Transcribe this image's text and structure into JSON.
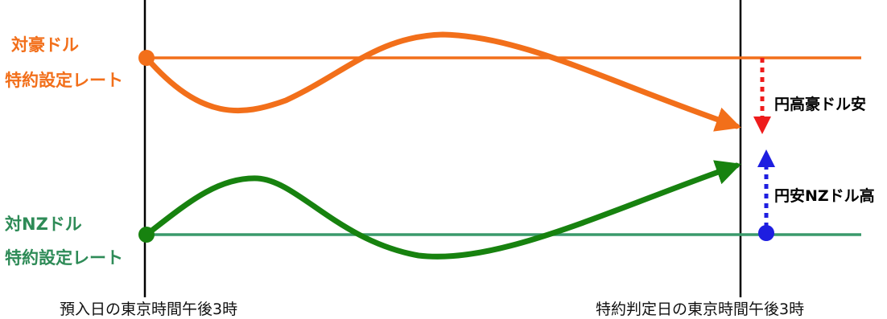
{
  "colors": {
    "aud": "#f26f1a",
    "nzd_line": "#3a9a6b",
    "nzd_curve": "#17820f",
    "down_arrow": "#ee1c1c",
    "up_arrow": "#1e1ee0"
  },
  "top": {
    "label_line1": "対豪ドル",
    "label_line2": "特約設定レート",
    "arrow_label": "円高豪ドル安"
  },
  "bottom": {
    "label_line1": "対NZドル",
    "label_line2": "特約設定レート",
    "arrow_label": "円安NZドル高"
  },
  "timeline": {
    "start_label": "預入日の東京時間午後3時",
    "end_label": "特約判定日の東京時間午後3時"
  }
}
